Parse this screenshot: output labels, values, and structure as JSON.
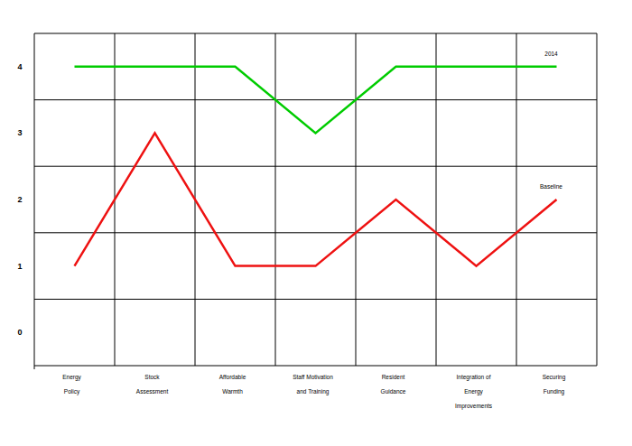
{
  "chart_data": {
    "type": "line",
    "categories": [
      "Energy\nPolicy",
      "Stock\nAssessment",
      "Affordable\nWarmth",
      "Staff Motivation\nand Training",
      "Resident\nGuidance",
      "Integration of\nEnergy\nImprovements",
      "Securing\nFunding"
    ],
    "series": [
      {
        "name": "2014",
        "color": "#00cc00",
        "values": [
          4,
          4,
          4,
          3,
          4,
          4,
          4
        ]
      },
      {
        "name": "Baseline",
        "color": "#ee1111",
        "values": [
          1,
          3,
          1,
          1,
          2,
          1,
          2
        ]
      }
    ],
    "ylim": [
      -0.5,
      4.5
    ],
    "yticks": [
      0,
      1,
      2,
      3,
      4
    ],
    "grid": true
  }
}
